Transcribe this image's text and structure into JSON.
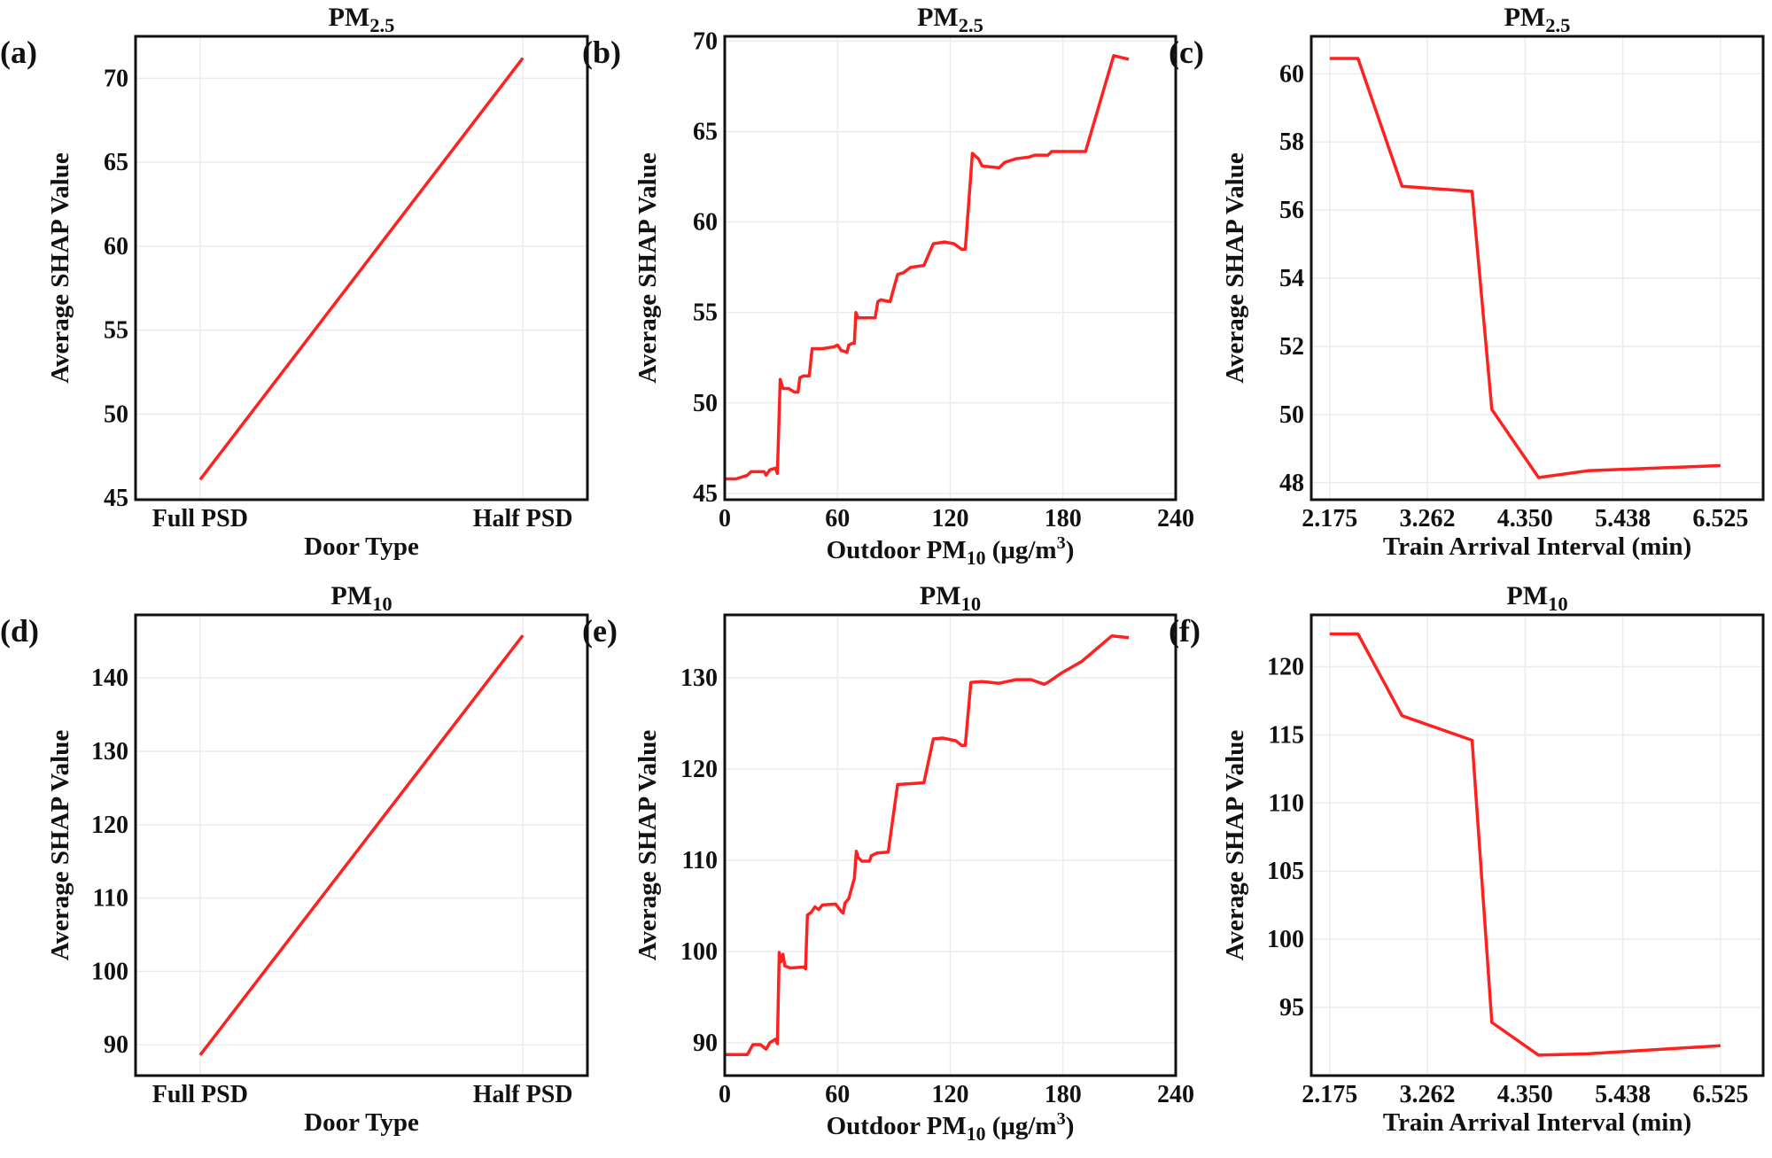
{
  "chart_data": [
    {
      "panel_label": "(a)",
      "type": "line",
      "title": [
        {
          "t": "PM"
        },
        {
          "t": "2.5",
          "sub": true
        }
      ],
      "xlabel": [
        {
          "t": "Door Type"
        }
      ],
      "ylabel": "Average SHAP Value",
      "categories": [
        "Full PSD",
        "Half PSD"
      ],
      "xlim": [
        -0.2,
        1.2
      ],
      "ylim": [
        44.9,
        72.5
      ],
      "yticks": [
        45,
        50,
        55,
        60,
        65,
        70
      ],
      "points": [
        [
          0,
          46.1
        ],
        [
          1,
          71.2
        ]
      ],
      "grid": true,
      "color": "#ff2020"
    },
    {
      "panel_label": "(b)",
      "type": "line",
      "title": [
        {
          "t": "PM"
        },
        {
          "t": "2.5",
          "sub": true
        }
      ],
      "xlabel": [
        {
          "t": "Outdoor PM"
        },
        {
          "t": "10",
          "sub": true
        },
        {
          "t": " (μg/m"
        },
        {
          "t": "3",
          "sup": true
        },
        {
          "t": ")"
        }
      ],
      "ylabel": "Average SHAP Value",
      "xlim": [
        0,
        240
      ],
      "ylim": [
        44.65,
        70.27
      ],
      "xticks": [
        0,
        60,
        120,
        180,
        240
      ],
      "xticklabels": [
        "0",
        "60",
        "120",
        "180",
        "240"
      ],
      "yticks": [
        45,
        50,
        55,
        60,
        65,
        70
      ],
      "points": [
        [
          0,
          45.8
        ],
        [
          6,
          45.8
        ],
        [
          12,
          46.0
        ],
        [
          14,
          46.2
        ],
        [
          21,
          46.2
        ],
        [
          22,
          46.0
        ],
        [
          24,
          46.3
        ],
        [
          27,
          46.4
        ],
        [
          28,
          46.1
        ],
        [
          29.5,
          51.3
        ],
        [
          31,
          50.8
        ],
        [
          34,
          50.8
        ],
        [
          37,
          50.6
        ],
        [
          39,
          50.6
        ],
        [
          40,
          51.4
        ],
        [
          42,
          51.5
        ],
        [
          45,
          51.5
        ],
        [
          46.5,
          53.0
        ],
        [
          52,
          53.0
        ],
        [
          58,
          53.1
        ],
        [
          60,
          53.2
        ],
        [
          62,
          52.9
        ],
        [
          65,
          52.8
        ],
        [
          66,
          53.2
        ],
        [
          68,
          53.3
        ],
        [
          69,
          53.3
        ],
        [
          69.8,
          55.0
        ],
        [
          71,
          54.7
        ],
        [
          80,
          54.7
        ],
        [
          81.5,
          55.6
        ],
        [
          83,
          55.7
        ],
        [
          88,
          55.6
        ],
        [
          92,
          57.1
        ],
        [
          95,
          57.2
        ],
        [
          99,
          57.5
        ],
        [
          106,
          57.6
        ],
        [
          111,
          58.8
        ],
        [
          117,
          58.9
        ],
        [
          122,
          58.8
        ],
        [
          126,
          58.5
        ],
        [
          128,
          58.5
        ],
        [
          131.8,
          63.8
        ],
        [
          135,
          63.5
        ],
        [
          137,
          63.1
        ],
        [
          146,
          63.0
        ],
        [
          149,
          63.3
        ],
        [
          155,
          63.5
        ],
        [
          162,
          63.6
        ],
        [
          165,
          63.7
        ],
        [
          172,
          63.7
        ],
        [
          174,
          63.9
        ],
        [
          192,
          63.9
        ],
        [
          207,
          69.2
        ],
        [
          215,
          69.0
        ]
      ],
      "grid": true,
      "color": "#ff2020"
    },
    {
      "panel_label": "(c)",
      "type": "line",
      "title": [
        {
          "t": "PM"
        },
        {
          "t": "2.5",
          "sub": true
        }
      ],
      "xlabel": [
        {
          "t": "Train Arrival Interval (min)"
        }
      ],
      "ylabel": "Average SHAP Value",
      "xlim": [
        1.97,
        7.0
      ],
      "ylim": [
        47.5,
        61.1
      ],
      "xticks": [
        2.175,
        3.262,
        4.35,
        5.438,
        6.525
      ],
      "xticklabels": [
        "2.175",
        "3.262",
        "4.350",
        "5.438",
        "6.525"
      ],
      "yticks": [
        48,
        50,
        52,
        54,
        56,
        58,
        60
      ],
      "points": [
        [
          2.175,
          60.45
        ],
        [
          2.49,
          60.45
        ],
        [
          2.98,
          56.7
        ],
        [
          3.76,
          56.55
        ],
        [
          3.98,
          50.15
        ],
        [
          4.5,
          48.15
        ],
        [
          5.05,
          48.35
        ],
        [
          6.525,
          48.5
        ]
      ],
      "grid": true,
      "color": "#ff2020"
    },
    {
      "panel_label": "(d)",
      "type": "line",
      "title": [
        {
          "t": "PM"
        },
        {
          "t": "10",
          "sub": true
        }
      ],
      "xlabel": [
        {
          "t": "Door Type"
        }
      ],
      "ylabel": "Average SHAP Value",
      "categories": [
        "Full PSD",
        "Half PSD"
      ],
      "xlim": [
        -0.2,
        1.2
      ],
      "ylim": [
        85.8,
        148.6
      ],
      "yticks": [
        90,
        100,
        110,
        120,
        130,
        140
      ],
      "points": [
        [
          0,
          88.6
        ],
        [
          1,
          145.8
        ]
      ],
      "grid": true,
      "color": "#ff2020"
    },
    {
      "panel_label": "(e)",
      "type": "line",
      "title": [
        {
          "t": "PM"
        },
        {
          "t": "10",
          "sub": true
        }
      ],
      "xlabel": [
        {
          "t": "Outdoor PM"
        },
        {
          "t": "10",
          "sub": true
        },
        {
          "t": " (μg/m"
        },
        {
          "t": "3",
          "sup": true
        },
        {
          "t": ")"
        }
      ],
      "ylabel": "Average SHAP Value",
      "xlim": [
        0,
        240
      ],
      "ylim": [
        86.4,
        136.9
      ],
      "xticks": [
        0,
        60,
        120,
        180,
        240
      ],
      "xticklabels": [
        "0",
        "60",
        "120",
        "180",
        "240"
      ],
      "yticks": [
        90,
        100,
        110,
        120,
        130
      ],
      "points": [
        [
          0,
          88.7
        ],
        [
          12,
          88.7
        ],
        [
          15,
          89.8
        ],
        [
          19,
          89.8
        ],
        [
          22,
          89.3
        ],
        [
          24,
          90.0
        ],
        [
          27,
          90.4
        ],
        [
          28,
          89.9
        ],
        [
          29,
          99.9
        ],
        [
          30,
          98.9
        ],
        [
          31,
          99.7
        ],
        [
          32,
          98.4
        ],
        [
          35,
          98.2
        ],
        [
          42,
          98.3
        ],
        [
          43,
          98.1
        ],
        [
          44,
          104.0
        ],
        [
          46,
          104.3
        ],
        [
          48,
          104.9
        ],
        [
          50,
          104.6
        ],
        [
          52,
          105.1
        ],
        [
          59,
          105.2
        ],
        [
          62,
          104.4
        ],
        [
          63,
          104.2
        ],
        [
          64,
          105.3
        ],
        [
          66,
          105.8
        ],
        [
          68,
          107.3
        ],
        [
          69,
          108.0
        ],
        [
          70,
          111.0
        ],
        [
          71,
          110.3
        ],
        [
          73,
          109.9
        ],
        [
          77,
          109.9
        ],
        [
          78,
          110.5
        ],
        [
          81,
          110.8
        ],
        [
          87,
          110.9
        ],
        [
          92,
          118.3
        ],
        [
          106,
          118.5
        ],
        [
          111,
          123.3
        ],
        [
          116,
          123.4
        ],
        [
          123,
          123.1
        ],
        [
          126,
          122.6
        ],
        [
          128,
          122.6
        ],
        [
          131,
          129.5
        ],
        [
          137,
          129.6
        ],
        [
          146,
          129.4
        ],
        [
          155,
          129.8
        ],
        [
          163,
          129.8
        ],
        [
          170,
          129.3
        ],
        [
          172,
          129.5
        ],
        [
          179,
          130.5
        ],
        [
          190,
          131.8
        ],
        [
          206,
          134.6
        ],
        [
          215,
          134.4
        ]
      ],
      "grid": true,
      "color": "#ff2020"
    },
    {
      "panel_label": "(f)",
      "type": "line",
      "title": [
        {
          "t": "PM"
        },
        {
          "t": "10",
          "sub": true
        }
      ],
      "xlabel": [
        {
          "t": "Train Arrival Interval (min)"
        }
      ],
      "ylabel": "Average SHAP Value",
      "xlim": [
        1.97,
        7.0
      ],
      "ylim": [
        90.0,
        123.8
      ],
      "xticks": [
        2.175,
        3.262,
        4.35,
        5.438,
        6.525
      ],
      "xticklabels": [
        "2.175",
        "3.262",
        "4.350",
        "5.438",
        "6.525"
      ],
      "yticks": [
        95,
        100,
        105,
        110,
        115,
        120
      ],
      "points": [
        [
          2.175,
          122.4
        ],
        [
          2.49,
          122.4
        ],
        [
          2.98,
          116.4
        ],
        [
          3.76,
          114.6
        ],
        [
          3.98,
          93.9
        ],
        [
          4.5,
          91.5
        ],
        [
          5.05,
          91.6
        ],
        [
          6.525,
          92.2
        ]
      ],
      "grid": true,
      "color": "#ff2020"
    }
  ]
}
